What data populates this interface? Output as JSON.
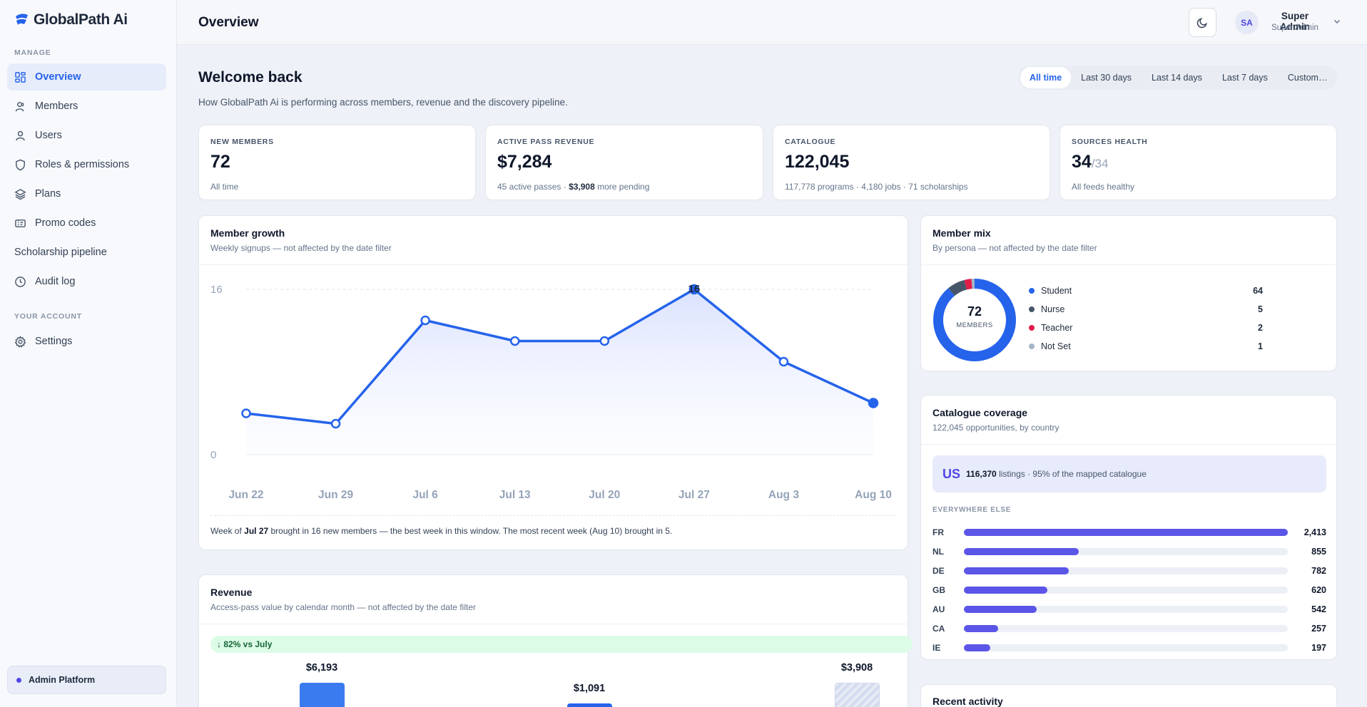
{
  "app": {
    "name": "GlobalPath Ai"
  },
  "sidebar": {
    "sections": [
      "MANAGE",
      "YOUR ACCOUNT"
    ],
    "items": [
      {
        "label": "Overview",
        "icon": "grid-icon",
        "active": true
      },
      {
        "label": "Members",
        "icon": "user-icon"
      },
      {
        "label": "Users",
        "icon": "user-icon"
      },
      {
        "label": "Roles & permissions",
        "icon": "shield-icon"
      },
      {
        "label": "Plans",
        "icon": "layers-icon"
      },
      {
        "label": "Promo codes",
        "icon": "ticket-icon"
      },
      {
        "label": "Scholarship pipeline"
      },
      {
        "label": "Audit log",
        "icon": "clock-icon"
      },
      {
        "label": "Settings",
        "icon": "gear-icon"
      }
    ],
    "footer": "Admin Platform"
  },
  "header": {
    "title": "Overview",
    "user": {
      "initials": "SA",
      "name": "Super Admin",
      "role": "Super Admin"
    }
  },
  "welcome": {
    "title": "Welcome back",
    "subtitle": "How GlobalPath Ai is performing across members, revenue and the discovery pipeline."
  },
  "range_tabs": [
    "All time",
    "Last 30 days",
    "Last 14 days",
    "Last 7 days",
    "Custom…"
  ],
  "stats": [
    {
      "label": "NEW MEMBERS",
      "value": "72",
      "sub": "All time"
    },
    {
      "label": "ACTIVE PASS REVENUE",
      "value": "$7,284",
      "sub_pre": "45 active passes · ",
      "sub_bold": "$3,908",
      "sub_post": " more pending"
    },
    {
      "label": "CATALOGUE",
      "value": "122,045",
      "sub": "117,778 programs · 4,180 jobs · 71 scholarships"
    },
    {
      "label": "SOURCES HEALTH",
      "value": "34",
      "denom": "/34",
      "sub": "All feeds healthy"
    }
  ],
  "member_growth": {
    "title": "Member growth",
    "subtitle": "Weekly signups — not affected by the date filter",
    "peak_label": "16",
    "foot_pre": "Week of ",
    "foot_bold": "Jul 27",
    "foot_post": " brought in 16 new members — the best week in this window. The most recent week (Aug 10) brought in 5."
  },
  "member_mix": {
    "title": "Member mix",
    "subtitle": "By persona — not affected by the date filter",
    "total": "72",
    "total_label": "MEMBERS",
    "segments": [
      {
        "name": "Student",
        "value": 64,
        "color": "#2563eb"
      },
      {
        "name": "Nurse",
        "value": 5,
        "color": "#475569"
      },
      {
        "name": "Teacher",
        "value": 2,
        "color": "#e11d48"
      },
      {
        "name": "Not Set",
        "value": 1,
        "color": "#a5b4c8"
      }
    ]
  },
  "coverage": {
    "title": "Catalogue coverage",
    "subtitle": "122,045 opportunities, by country",
    "top_code": "US",
    "top_count": "116,370",
    "top_text": " listings · 95% of the mapped catalogue",
    "else_label": "EVERYWHERE ELSE",
    "rows": [
      {
        "code": "FR",
        "value": 2413,
        "label": "2,413"
      },
      {
        "code": "NL",
        "value": 855,
        "label": "855"
      },
      {
        "code": "DE",
        "value": 782,
        "label": "782"
      },
      {
        "code": "GB",
        "value": 620,
        "label": "620"
      },
      {
        "code": "AU",
        "value": 542,
        "label": "542"
      },
      {
        "code": "CA",
        "value": 257,
        "label": "257"
      },
      {
        "code": "IE",
        "value": 197,
        "label": "197"
      }
    ]
  },
  "revenue": {
    "title": "Revenue",
    "subtitle": "Access-pass value by calendar month — not affected by the date filter",
    "badge": "↓ 82% vs July",
    "values": [
      "$6,193",
      "$1,091",
      "$3,908"
    ]
  },
  "recent_activity": {
    "title": "Recent activity"
  },
  "chart_data": {
    "type": "line",
    "title": "Member growth",
    "categories": [
      "Jun 22",
      "Jun 29",
      "Jul 6",
      "Jul 13",
      "Jul 20",
      "Jul 27",
      "Aug 3",
      "Aug 10"
    ],
    "values": [
      4,
      3,
      13,
      11,
      11,
      16,
      9,
      5
    ],
    "ylim": [
      0,
      16
    ],
    "yticks": [
      "0",
      "16"
    ],
    "color": "#2563eb",
    "grid": true
  }
}
